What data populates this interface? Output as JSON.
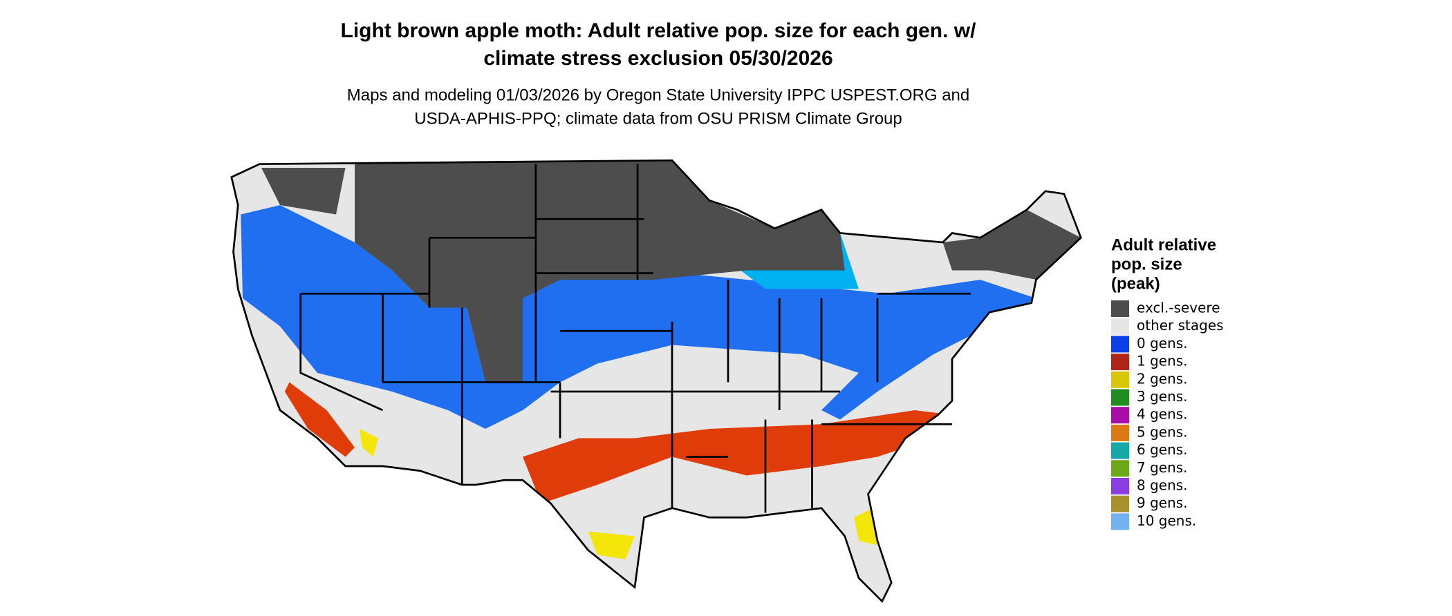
{
  "title": [
    "Light brown apple moth: Adult relative pop. size for each gen. w/",
    "climate stress exclusion 05/30/2026"
  ],
  "subtitle": [
    "Maps and modeling 01/03/2026 by Oregon State University IPPC USPEST.ORG and",
    "USDA-APHIS-PPQ; climate data from OSU PRISM Climate Group"
  ],
  "legend": {
    "title": [
      "Adult relative",
      "pop. size",
      "(peak)"
    ],
    "items": [
      {
        "label": "excl.-severe",
        "color": "#4d4d4d"
      },
      {
        "label": "other stages",
        "color": "#e6e6e6"
      },
      {
        "label": "0 gens.",
        "color": "#0a3ee6"
      },
      {
        "label": "1 gens.",
        "color": "#b0241a"
      },
      {
        "label": "2 gens.",
        "color": "#d9c70a"
      },
      {
        "label": "3 gens.",
        "color": "#218c21"
      },
      {
        "label": "4 gens.",
        "color": "#a80ea8"
      },
      {
        "label": "5 gens.",
        "color": "#de7a14"
      },
      {
        "label": "6 gens.",
        "color": "#17a8a8"
      },
      {
        "label": "7 gens.",
        "color": "#6ca81a"
      },
      {
        "label": "8 gens.",
        "color": "#8a3de0"
      },
      {
        "label": "9 gens.",
        "color": "#a8902a"
      },
      {
        "label": "10 gens.",
        "color": "#73b2f0"
      }
    ]
  }
}
